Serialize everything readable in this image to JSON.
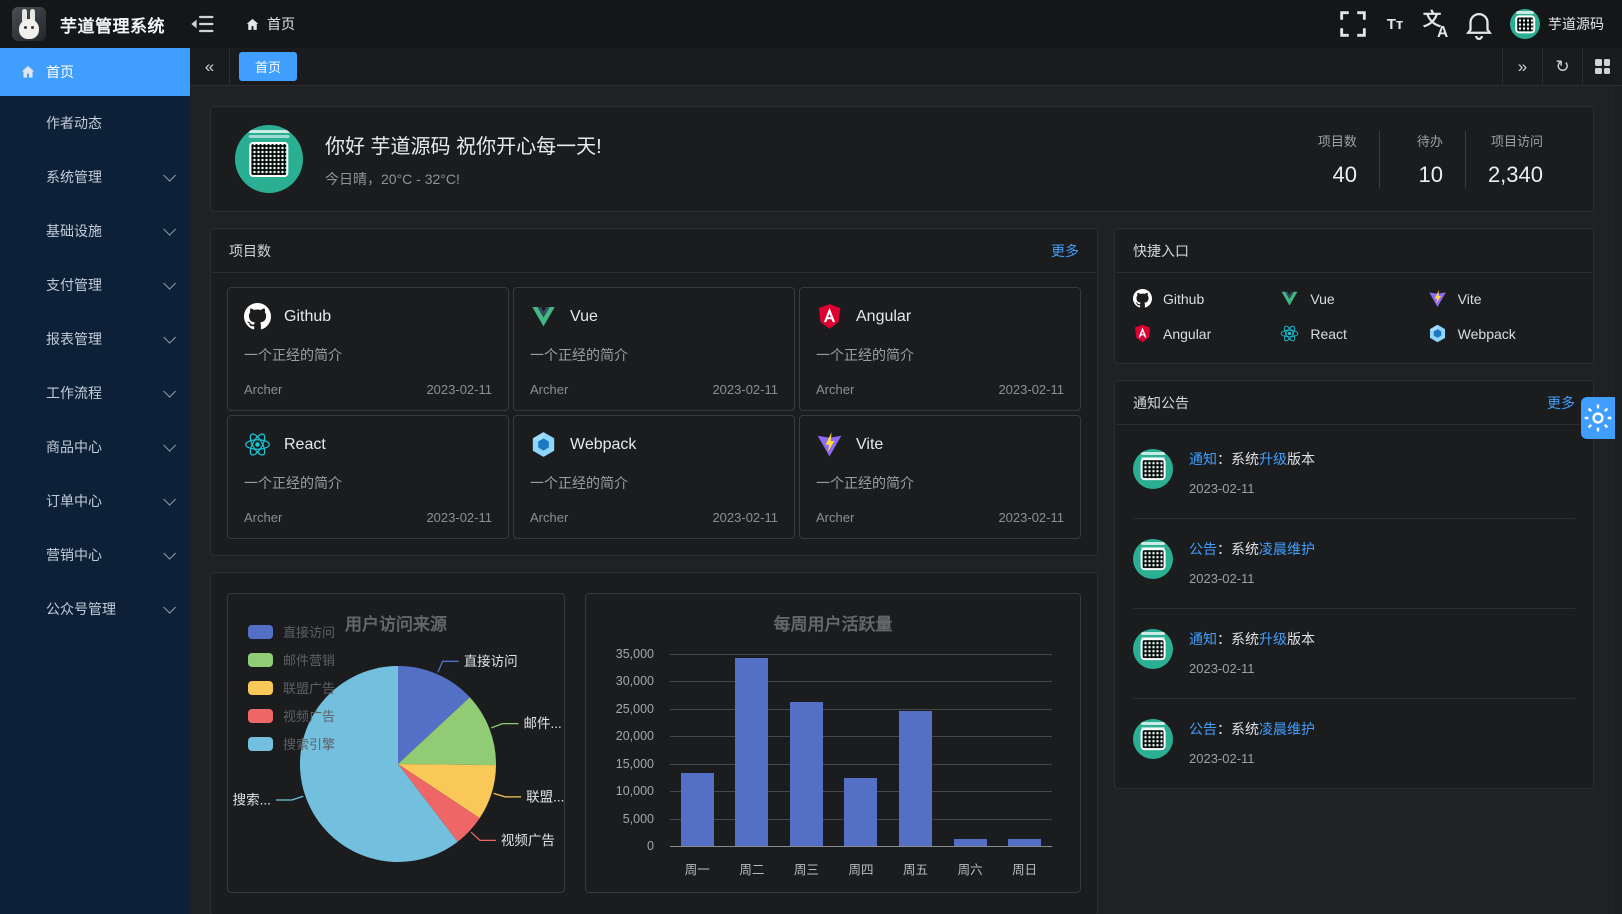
{
  "app": {
    "title": "芋道管理系统",
    "user_name": "芋道源码"
  },
  "nav": {
    "breadcrumb_home": "首页",
    "font_size_tool": "Tт"
  },
  "tabs": {
    "active_tab": "首页",
    "prev_arrow": "«",
    "next_arrow": "»",
    "refresh_glyph": "↻"
  },
  "sidebar": {
    "items": [
      {
        "label": "首页",
        "active": true,
        "expandable": false
      },
      {
        "label": "作者动态",
        "active": false,
        "expandable": false
      },
      {
        "label": "系统管理",
        "active": false,
        "expandable": true
      },
      {
        "label": "基础设施",
        "active": false,
        "expandable": true
      },
      {
        "label": "支付管理",
        "active": false,
        "expandable": true
      },
      {
        "label": "报表管理",
        "active": false,
        "expandable": true
      },
      {
        "label": "工作流程",
        "active": false,
        "expandable": true
      },
      {
        "label": "商品中心",
        "active": false,
        "expandable": true
      },
      {
        "label": "订单中心",
        "active": false,
        "expandable": true
      },
      {
        "label": "营销中心",
        "active": false,
        "expandable": true
      },
      {
        "label": "公众号管理",
        "active": false,
        "expandable": true
      }
    ]
  },
  "welcome": {
    "greeting": "你好 芋道源码 祝你开心每一天!",
    "weather": "今日晴，20°C - 32°C!",
    "stats": [
      {
        "label": "项目数",
        "value": "40"
      },
      {
        "label": "待办",
        "value": "10"
      },
      {
        "label": "项目访问",
        "value": "2,340"
      }
    ]
  },
  "projects": {
    "title": "项目数",
    "more": "更多",
    "items": [
      {
        "name": "Github",
        "icon": "github",
        "desc": "一个正经的简介",
        "author": "Archer",
        "date": "2023-02-11"
      },
      {
        "name": "Vue",
        "icon": "vue",
        "desc": "一个正经的简介",
        "author": "Archer",
        "date": "2023-02-11"
      },
      {
        "name": "Angular",
        "icon": "angular",
        "desc": "一个正经的简介",
        "author": "Archer",
        "date": "2023-02-11"
      },
      {
        "name": "React",
        "icon": "react",
        "desc": "一个正经的简介",
        "author": "Archer",
        "date": "2023-02-11"
      },
      {
        "name": "Webpack",
        "icon": "webpack",
        "desc": "一个正经的简介",
        "author": "Archer",
        "date": "2023-02-11"
      },
      {
        "name": "Vite",
        "icon": "vite",
        "desc": "一个正经的简介",
        "author": "Archer",
        "date": "2023-02-11"
      }
    ]
  },
  "shortcuts": {
    "title": "快捷入口",
    "items": [
      {
        "label": "Github",
        "icon": "github"
      },
      {
        "label": "Vue",
        "icon": "vue"
      },
      {
        "label": "Vite",
        "icon": "vite"
      },
      {
        "label": "Angular",
        "icon": "angular"
      },
      {
        "label": "React",
        "icon": "react"
      },
      {
        "label": "Webpack",
        "icon": "webpack"
      }
    ]
  },
  "notices": {
    "title": "通知公告",
    "more": "更多",
    "items": [
      {
        "tag": "通知",
        "pre": "：系统",
        "hl": "升级",
        "post": "版本",
        "date": "2023-02-11"
      },
      {
        "tag": "公告",
        "pre": "：系统",
        "hl": "凌晨维护",
        "post": "",
        "date": "2023-02-11"
      },
      {
        "tag": "通知",
        "pre": "：系统",
        "hl": "升级",
        "post": "版本",
        "date": "2023-02-11"
      },
      {
        "tag": "公告",
        "pre": "：系统",
        "hl": "凌晨维护",
        "post": "",
        "date": "2023-02-11"
      }
    ]
  },
  "chart_data": [
    {
      "type": "pie",
      "title": "用户访问来源",
      "legend_position": "top-left",
      "series": [
        {
          "name": "直接访问",
          "value": 335,
          "color": "#5470c6",
          "label_display": "直接访问"
        },
        {
          "name": "邮件营销",
          "value": 310,
          "color": "#91cc75",
          "label_display": "邮件..."
        },
        {
          "name": "联盟广告",
          "value": 234,
          "color": "#fac858",
          "label_display": "联盟..."
        },
        {
          "name": "视频广告",
          "value": 135,
          "color": "#ee6666",
          "label_display": "视频广告"
        },
        {
          "name": "搜索引擎",
          "value": 1548,
          "color": "#73c0de",
          "label_display": "搜索..."
        }
      ]
    },
    {
      "type": "bar",
      "title": "每周用户活跃量",
      "categories": [
        "周一",
        "周二",
        "周三",
        "周四",
        "周五",
        "周六",
        "周日"
      ],
      "values": [
        13253,
        34235,
        26321,
        12340,
        24643,
        1322,
        1324
      ],
      "xlabel": "",
      "ylabel": "",
      "ylim": [
        0,
        35000
      ],
      "y_tick_step": 5000,
      "grid": true,
      "bar_color": "#5470c6"
    }
  ],
  "theme": {
    "accent": "#409eff",
    "sidebar_bg": "#0c2138",
    "card_bg": "#1b1c1e",
    "avatar_green": "#2aaf93"
  }
}
